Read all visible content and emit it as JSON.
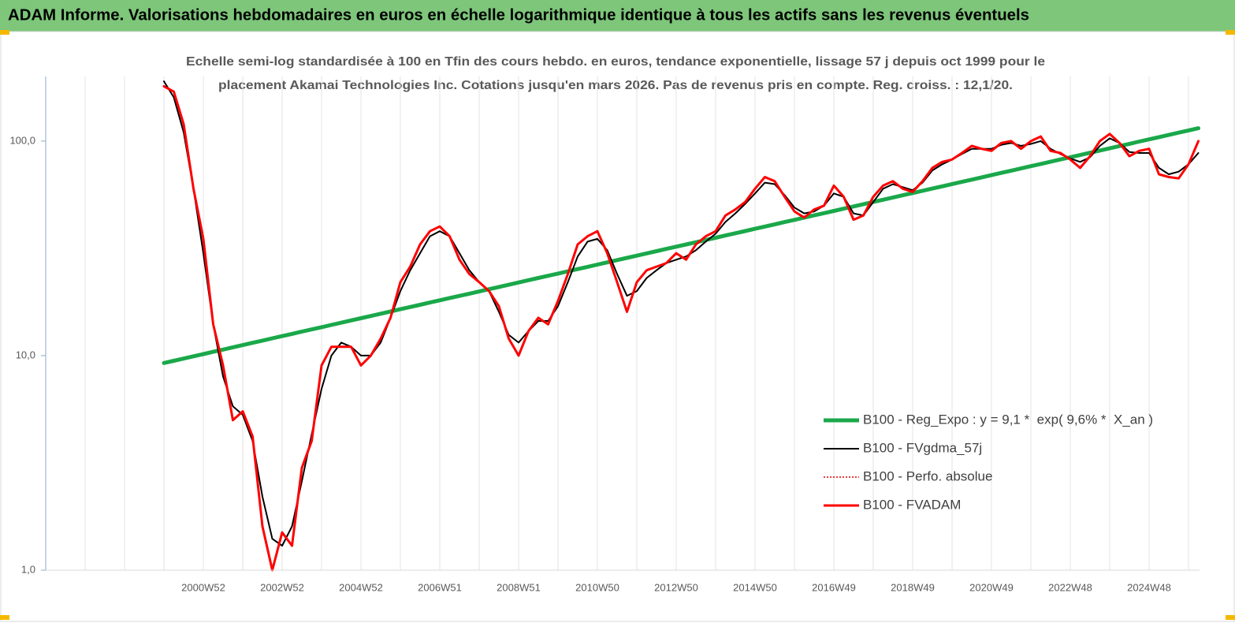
{
  "chart_data": {
    "type": "line",
    "title": "ADAM Informe. Valorisations hebdomadaires en euros en échelle logarithmique identique à tous les actifs sans les revenus éventuels",
    "subtitle": [
      "Echelle semi-log standardisée à 100 en Tfin des cours hebdo. en euros, tendance exponentielle, lissage 57 j depuis oct 1999 pour le",
      "placement Akamai Technologies Inc. Cotations jusqu'en mars 2026. Pas de revenus pris en compte. Reg. croiss. : 12,1/20."
    ],
    "log_scale": true,
    "ylim": [
      1,
      200
    ],
    "yticks": [
      {
        "value": 1,
        "label": "1,0"
      },
      {
        "value": 10,
        "label": "10,0"
      },
      {
        "value": 100,
        "label": "100,0"
      }
    ],
    "grid": true,
    "legend": "lower-right",
    "categories": [
      null,
      null,
      null,
      null,
      "2000W52",
      null,
      null,
      null,
      null,
      null,
      null,
      null,
      "2002W52",
      null,
      null,
      null,
      null,
      null,
      null,
      null,
      "2004W52",
      null,
      null,
      null,
      null,
      null,
      null,
      null,
      "2006W51",
      null,
      null,
      null,
      null,
      null,
      null,
      null,
      "2008W51",
      null,
      null,
      null,
      null,
      null,
      null,
      null,
      "2010W50",
      null,
      null,
      null,
      null,
      null,
      null,
      null,
      "2012W50",
      null,
      null,
      null,
      null,
      null,
      null,
      null,
      "2014W50",
      null,
      null,
      null,
      null,
      null,
      null,
      null,
      "2016W49",
      null,
      null,
      null,
      null,
      null,
      null,
      null,
      "2018W49",
      null,
      null,
      null,
      null,
      null,
      null,
      null,
      "2020W49",
      null,
      null,
      null,
      null,
      null,
      null,
      null,
      "2022W48",
      null,
      null,
      null,
      null,
      null,
      null,
      null,
      "2024W48",
      null,
      null,
      null,
      null,
      null
    ],
    "series": [
      {
        "name": "B100 - Reg_Expo : y = 9,1 *  exp( 9,6% *  X_an )",
        "color": "#1aa84a",
        "width": 5,
        "dash": "none",
        "values": [
          9.24,
          9.46,
          9.69,
          9.93,
          10.17,
          10.42,
          10.67,
          10.93,
          11.2,
          11.47,
          11.75,
          12.04,
          12.33,
          12.63,
          12.94,
          13.25,
          13.57,
          13.9,
          14.24,
          14.59,
          14.94,
          15.3,
          15.68,
          16.06,
          16.45,
          16.85,
          17.26,
          17.68,
          18.11,
          18.55,
          18.98,
          19.44,
          19.91,
          20.4,
          20.89,
          21.4,
          21.92,
          22.46,
          23,
          23.56,
          24.13,
          24.72,
          25.32,
          25.93,
          26.56,
          27.21,
          27.87,
          28.55,
          29.24,
          29.95,
          30.68,
          31.43,
          32.19,
          32.97,
          33.77,
          34.59,
          35.43,
          36.3,
          37.18,
          38.08,
          39,
          39.95,
          40.92,
          41.92,
          42.94,
          43.98,
          45.05,
          46.14,
          47.26,
          48.41,
          49.58,
          50.79,
          52.02,
          53.29,
          54.58,
          55.91,
          57.27,
          58.66,
          60.08,
          61.54,
          63.03,
          64.56,
          66.13,
          67.74,
          69.38,
          71.07,
          72.8,
          74.57,
          76.38,
          78.23,
          80.12,
          82.07,
          84.07,
          86.11,
          88.2,
          90.34,
          92.54,
          94.79,
          97.09,
          99.45,
          101.85,
          104.32,
          106.86,
          109.45,
          112.11,
          114.83
        ]
      },
      {
        "name": "B100 - FVgdma_57j",
        "color": "#000000",
        "width": 2,
        "dash": "none",
        "values": [
          190,
          160,
          110,
          60,
          30,
          14,
          8,
          5.8,
          5.3,
          4,
          2.2,
          1.4,
          1.3,
          1.6,
          2.6,
          4.3,
          7,
          10,
          11.5,
          11,
          10,
          10,
          11.5,
          15,
          20,
          25,
          30,
          36,
          38,
          36,
          30,
          25,
          22,
          20,
          16,
          12.5,
          11.5,
          13,
          14.5,
          14.5,
          17,
          22,
          29,
          34,
          35,
          31,
          24,
          19,
          20,
          23,
          25,
          27,
          28,
          29,
          31,
          34,
          37,
          42,
          46,
          51,
          57,
          64,
          63,
          56,
          49,
          46,
          47,
          50,
          57,
          55,
          46,
          45,
          52,
          60,
          63,
          61,
          59,
          64,
          73,
          78,
          82,
          87,
          92,
          92,
          92,
          96,
          98,
          95,
          97,
          100,
          92,
          87,
          83,
          80,
          84,
          95,
          103,
          98,
          89,
          88,
          88,
          75,
          70,
          72,
          78,
          88
        ]
      },
      {
        "name": "B100 - Perfo. absolue",
        "color": "#e00000",
        "width": 1.5,
        "dash": "2 2",
        "values": [
          180,
          170,
          120,
          60,
          35,
          14,
          9,
          5,
          5.5,
          4.2,
          1.6,
          1,
          1.5,
          1.3,
          3,
          4,
          9,
          11,
          11,
          11,
          9,
          10,
          12,
          15,
          22,
          26,
          33,
          38,
          40,
          36,
          28,
          24,
          22,
          20,
          17,
          12,
          10,
          13,
          15,
          14,
          18,
          24,
          33,
          36,
          38,
          30,
          22,
          16,
          22,
          25,
          26,
          27,
          30,
          28,
          33,
          36,
          38,
          45,
          48,
          52,
          60,
          68,
          65,
          55,
          47,
          44,
          48,
          50,
          62,
          55,
          43,
          45,
          55,
          62,
          65,
          60,
          58,
          65,
          75,
          80,
          82,
          88,
          95,
          92,
          90,
          98,
          100,
          92,
          100,
          105,
          90,
          88,
          82,
          75,
          85,
          100,
          108,
          98,
          85,
          90,
          92,
          70,
          68,
          67,
          78,
          100
        ]
      },
      {
        "name": "B100 - FVADAM",
        "color": "#ff0000",
        "width": 3,
        "dash": "none",
        "values": [
          180,
          170,
          120,
          60,
          35,
          14,
          9,
          5,
          5.5,
          4.2,
          1.6,
          1,
          1.5,
          1.3,
          3,
          4,
          9,
          11,
          11,
          11,
          9,
          10,
          12,
          15,
          22,
          26,
          33,
          38,
          40,
          36,
          28,
          24,
          22,
          20,
          17,
          12,
          10,
          13,
          15,
          14,
          18,
          24,
          33,
          36,
          38,
          30,
          22,
          16,
          22,
          25,
          26,
          27,
          30,
          28,
          33,
          36,
          38,
          45,
          48,
          52,
          60,
          68,
          65,
          55,
          47,
          44,
          48,
          50,
          62,
          55,
          43,
          45,
          55,
          62,
          65,
          60,
          58,
          65,
          75,
          80,
          82,
          88,
          95,
          92,
          90,
          98,
          100,
          92,
          100,
          105,
          90,
          88,
          82,
          75,
          85,
          100,
          108,
          98,
          85,
          90,
          92,
          70,
          68,
          67,
          78,
          100
        ]
      }
    ]
  }
}
